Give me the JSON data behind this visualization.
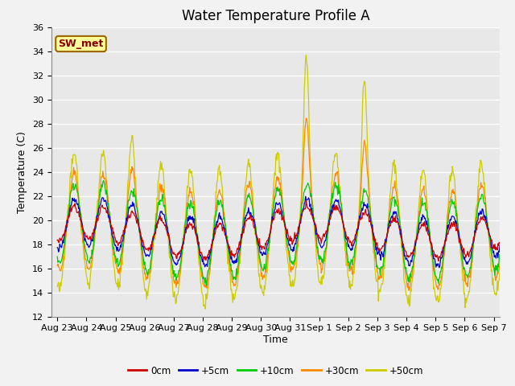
{
  "title": "Water Temperature Profile A",
  "xlabel": "Time",
  "ylabel": "Temperature (C)",
  "ylim": [
    12,
    36
  ],
  "yticks": [
    12,
    14,
    16,
    18,
    20,
    22,
    24,
    26,
    28,
    30,
    32,
    34,
    36
  ],
  "x_labels": [
    "Aug 23",
    "Aug 24",
    "Aug 25",
    "Aug 26",
    "Aug 27",
    "Aug 28",
    "Aug 29",
    "Aug 30",
    "Aug 31",
    "Sep 1",
    "Sep 2",
    "Sep 3",
    "Sep 4",
    "Sep 5",
    "Sep 6",
    "Sep 7"
  ],
  "legend_labels": [
    "0cm",
    "+5cm",
    "+10cm",
    "+30cm",
    "+50cm"
  ],
  "legend_colors": [
    "#cc0000",
    "#0000cc",
    "#00cc00",
    "#ff8800",
    "#cccc00"
  ],
  "annotation_text": "SW_met",
  "annotation_bg": "#ffff99",
  "annotation_border": "#996600",
  "annotation_text_color": "#880000",
  "plot_bg_color": "#e8e8e8",
  "fig_bg_color": "#f2f2f2",
  "grid_color": "#ffffff",
  "title_fontsize": 12,
  "label_fontsize": 9,
  "tick_fontsize": 8
}
